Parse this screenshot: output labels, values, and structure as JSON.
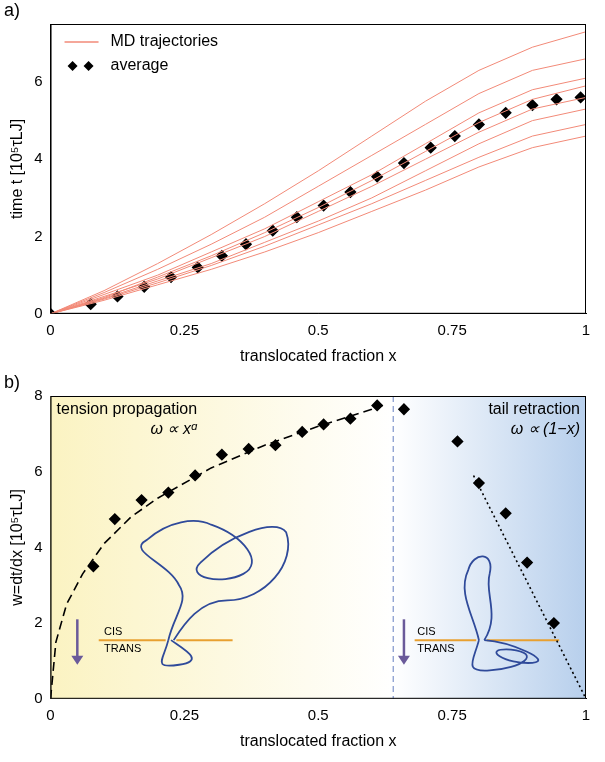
{
  "chart_data": [
    {
      "type": "line",
      "panel": "a)",
      "x_label": "translocated fraction x",
      "y_label": "time t [10⁵τLJ]",
      "xlim": [
        0,
        1
      ],
      "ylim": [
        0,
        7.5
      ],
      "xticks": [
        0,
        0.25,
        0.5,
        0.75,
        1
      ],
      "yticks": [
        0,
        2,
        4,
        6
      ],
      "grid": false,
      "legend": "upper left",
      "series": [
        {
          "name": "MD trajectories",
          "color": "#f28a78",
          "marker": "none",
          "line_style": "solid",
          "x": [
            0,
            0.1,
            0.2,
            0.3,
            0.4,
            0.5,
            0.6,
            0.7,
            0.8,
            0.9,
            1
          ],
          "values": [
            0,
            0.35,
            0.75,
            1.15,
            1.6,
            2.1,
            2.65,
            3.2,
            3.8,
            4.3,
            4.6
          ]
        },
        {
          "name": "MD trajectories",
          "color": "#f28a78",
          "marker": "none",
          "line_style": "solid",
          "x": [
            0,
            0.1,
            0.2,
            0.3,
            0.4,
            0.5,
            0.6,
            0.7,
            0.8,
            0.9,
            1
          ],
          "values": [
            0,
            0.4,
            0.85,
            1.3,
            1.85,
            2.4,
            3.0,
            3.7,
            4.4,
            5.0,
            5.3
          ]
        },
        {
          "name": "MD trajectories",
          "color": "#f28a78",
          "marker": "none",
          "line_style": "solid",
          "x": [
            0,
            0.1,
            0.2,
            0.3,
            0.4,
            0.5,
            0.6,
            0.7,
            0.8,
            0.9,
            1
          ],
          "values": [
            0,
            0.45,
            0.9,
            1.45,
            2.0,
            2.65,
            3.3,
            4.0,
            4.7,
            5.3,
            5.6
          ]
        },
        {
          "name": "MD trajectories",
          "color": "#f28a78",
          "marker": "none",
          "line_style": "solid",
          "x": [
            0,
            0.1,
            0.2,
            0.3,
            0.4,
            0.5,
            0.6,
            0.7,
            0.8,
            0.9,
            1
          ],
          "values": [
            0,
            0.5,
            1.0,
            1.6,
            2.2,
            2.9,
            3.6,
            4.4,
            5.2,
            5.8,
            6.1
          ]
        },
        {
          "name": "MD trajectories",
          "color": "#f28a78",
          "marker": "none",
          "line_style": "solid",
          "x": [
            0,
            0.1,
            0.2,
            0.3,
            0.4,
            0.5,
            0.6,
            0.7,
            0.8,
            0.9,
            1
          ],
          "values": [
            0,
            0.55,
            1.15,
            1.8,
            2.5,
            3.3,
            4.1,
            4.9,
            5.7,
            6.3,
            6.6
          ]
        },
        {
          "name": "MD trajectories",
          "color": "#f28a78",
          "marker": "none",
          "line_style": "solid",
          "x": [
            0,
            0.1,
            0.2,
            0.3,
            0.4,
            0.5,
            0.6,
            0.7,
            0.8,
            0.9,
            1
          ],
          "values": [
            0,
            0.6,
            1.3,
            2.05,
            2.85,
            3.7,
            4.6,
            5.5,
            6.3,
            6.9,
            7.3
          ]
        },
        {
          "name": "MD trajectories",
          "color": "#f28a78",
          "marker": "none",
          "line_style": "solid",
          "x": [
            0,
            0.1,
            0.2,
            0.3,
            0.4,
            0.5,
            0.6,
            0.7,
            0.8,
            0.9,
            1
          ],
          "values": [
            0,
            0.42,
            0.95,
            1.5,
            2.1,
            2.75,
            3.45,
            4.2,
            4.95,
            5.55,
            5.9
          ]
        },
        {
          "name": "MD trajectories",
          "color": "#f28a78",
          "marker": "none",
          "line_style": "solid",
          "x": [
            0,
            0.1,
            0.2,
            0.3,
            0.4,
            0.5,
            0.6,
            0.7,
            0.8,
            0.9,
            1
          ],
          "values": [
            0,
            0.38,
            0.8,
            1.25,
            1.75,
            2.3,
            2.85,
            3.45,
            4.05,
            4.6,
            4.9
          ]
        },
        {
          "name": "average",
          "color": "#000000",
          "marker": "diamond",
          "line_style": "none",
          "x": [
            0,
            0.075,
            0.125,
            0.175,
            0.225,
            0.275,
            0.32,
            0.365,
            0.415,
            0.46,
            0.51,
            0.56,
            0.61,
            0.66,
            0.71,
            0.755,
            0.8,
            0.85,
            0.9,
            0.945,
            0.99
          ],
          "values": [
            0,
            0.25,
            0.45,
            0.7,
            0.95,
            1.2,
            1.5,
            1.8,
            2.15,
            2.5,
            2.8,
            3.15,
            3.55,
            3.9,
            4.3,
            4.6,
            4.9,
            5.2,
            5.4,
            5.55,
            5.6
          ]
        }
      ]
    },
    {
      "type": "line",
      "panel": "b)",
      "x_label": "translocated fraction x",
      "y_label": "w=dt/dx [10⁵τLJ]",
      "xlim": [
        0,
        1
      ],
      "ylim": [
        0,
        8
      ],
      "xticks": [
        0,
        0.25,
        0.5,
        0.75,
        1
      ],
      "yticks": [
        0,
        2,
        4,
        6,
        8
      ],
      "grid": false,
      "regions": [
        {
          "label": "tension propagation",
          "law": "ω ∝ xᵅ",
          "from": 0,
          "to": 0.64
        },
        {
          "label": "tail retraction",
          "law": "ω ∝ (1−x)",
          "from": 0.64,
          "to": 1
        }
      ],
      "inset_labels": [
        "CIS",
        "TRANS"
      ],
      "series": [
        {
          "color": "#000000",
          "marker": "none",
          "line_style": "dashed",
          "x": [
            0,
            0.01,
            0.03,
            0.06,
            0.1,
            0.15,
            0.2,
            0.3,
            0.4,
            0.5,
            0.6,
            0.62
          ],
          "values": [
            0,
            1.5,
            2.5,
            3.3,
            4.1,
            4.8,
            5.3,
            6.1,
            6.7,
            7.2,
            7.65,
            7.75
          ]
        },
        {
          "color": "#000000",
          "marker": "none",
          "line_style": "dotted",
          "x": [
            0.79,
            1
          ],
          "values": [
            5.9,
            0
          ]
        },
        {
          "color": "#000000",
          "marker": "diamond",
          "line_style": "none",
          "x": [
            0.08,
            0.12,
            0.17,
            0.22,
            0.27,
            0.32,
            0.37,
            0.42,
            0.47,
            0.51,
            0.56,
            0.61,
            0.66,
            0.76,
            0.8,
            0.85,
            0.89,
            0.94
          ],
          "values": [
            3.5,
            4.75,
            5.25,
            5.45,
            5.9,
            6.45,
            6.6,
            6.7,
            7.05,
            7.25,
            7.4,
            7.75,
            7.65,
            6.8,
            5.7,
            4.9,
            3.6,
            2.0
          ]
        }
      ]
    }
  ]
}
